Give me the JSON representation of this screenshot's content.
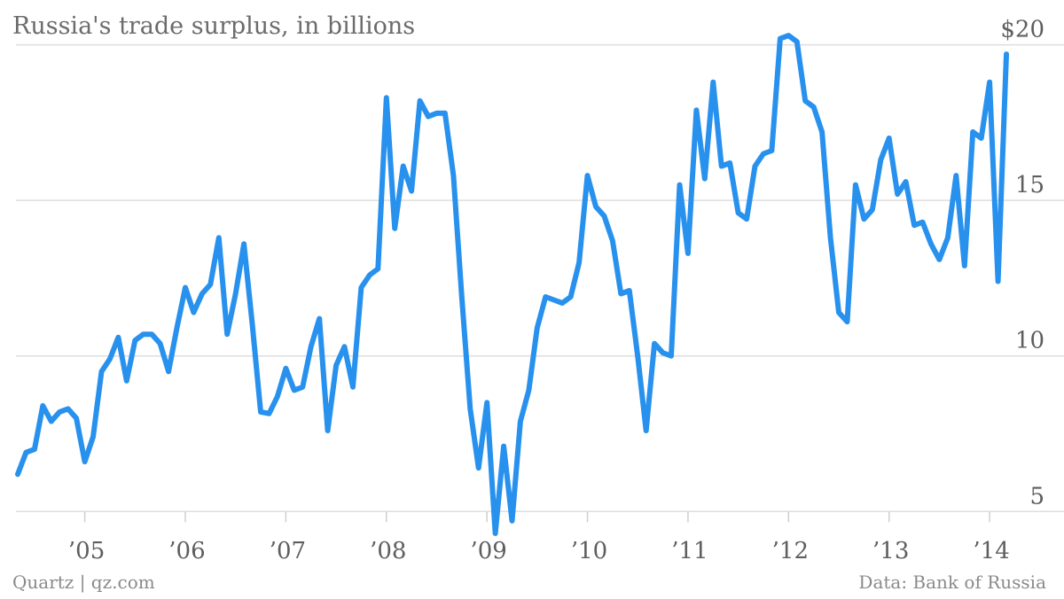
{
  "chart_data": {
    "type": "line",
    "title": "Russia's trade surplus, in billions",
    "xlabel": "",
    "ylabel": "",
    "ylim": [
      4.3,
      20.8
    ],
    "yticks": [
      5,
      10,
      15,
      20
    ],
    "ytick_labels": [
      "5",
      "10",
      "15",
      "$20"
    ],
    "xticks": [
      2005,
      2006,
      2007,
      2008,
      2009,
      2010,
      2011,
      2012,
      2013,
      2014
    ],
    "xtick_labels": [
      "’05",
      "’06",
      "’07",
      "’08",
      "’09",
      "’10",
      "’11",
      "’12",
      "’13",
      "’14"
    ],
    "grid": true,
    "series_color": "#2891EE",
    "x_start": "2004-05",
    "interval": "monthly",
    "values": [
      6.2,
      6.9,
      7.0,
      8.4,
      7.9,
      8.2,
      8.3,
      8.0,
      6.6,
      7.4,
      9.5,
      9.9,
      10.6,
      9.2,
      10.5,
      10.7,
      10.7,
      10.4,
      9.5,
      10.9,
      12.2,
      11.4,
      12.0,
      12.3,
      13.8,
      10.7,
      12.0,
      13.6,
      11.0,
      8.2,
      8.15,
      8.7,
      9.6,
      8.9,
      9.0,
      10.3,
      11.2,
      7.6,
      9.7,
      10.3,
      9.0,
      12.2,
      12.6,
      12.8,
      18.3,
      14.1,
      16.1,
      15.3,
      18.2,
      17.7,
      17.8,
      17.8,
      15.8,
      11.9,
      8.3,
      6.4,
      8.5,
      4.3,
      7.1,
      4.7,
      7.9,
      8.9,
      10.9,
      11.9,
      11.8,
      11.7,
      11.9,
      13.0,
      15.8,
      14.8,
      14.5,
      13.7,
      12.0,
      12.1,
      10.0,
      7.6,
      10.4,
      10.1,
      10.0,
      15.5,
      13.3,
      17.9,
      15.7,
      18.8,
      16.1,
      16.2,
      14.6,
      14.4,
      16.1,
      16.5,
      16.6,
      20.2,
      20.3,
      20.1,
      18.2,
      18.0,
      17.2,
      13.8,
      11.4,
      11.1,
      15.5,
      14.4,
      14.7,
      16.3,
      17.0,
      15.2,
      15.6,
      14.2,
      14.3,
      13.6,
      13.1,
      13.8,
      15.8,
      12.9,
      17.2,
      17.0,
      18.8,
      12.4,
      19.7
    ]
  },
  "footer": {
    "source_left": "Quartz | qz.com",
    "source_right": "Data: Bank of Russia"
  }
}
